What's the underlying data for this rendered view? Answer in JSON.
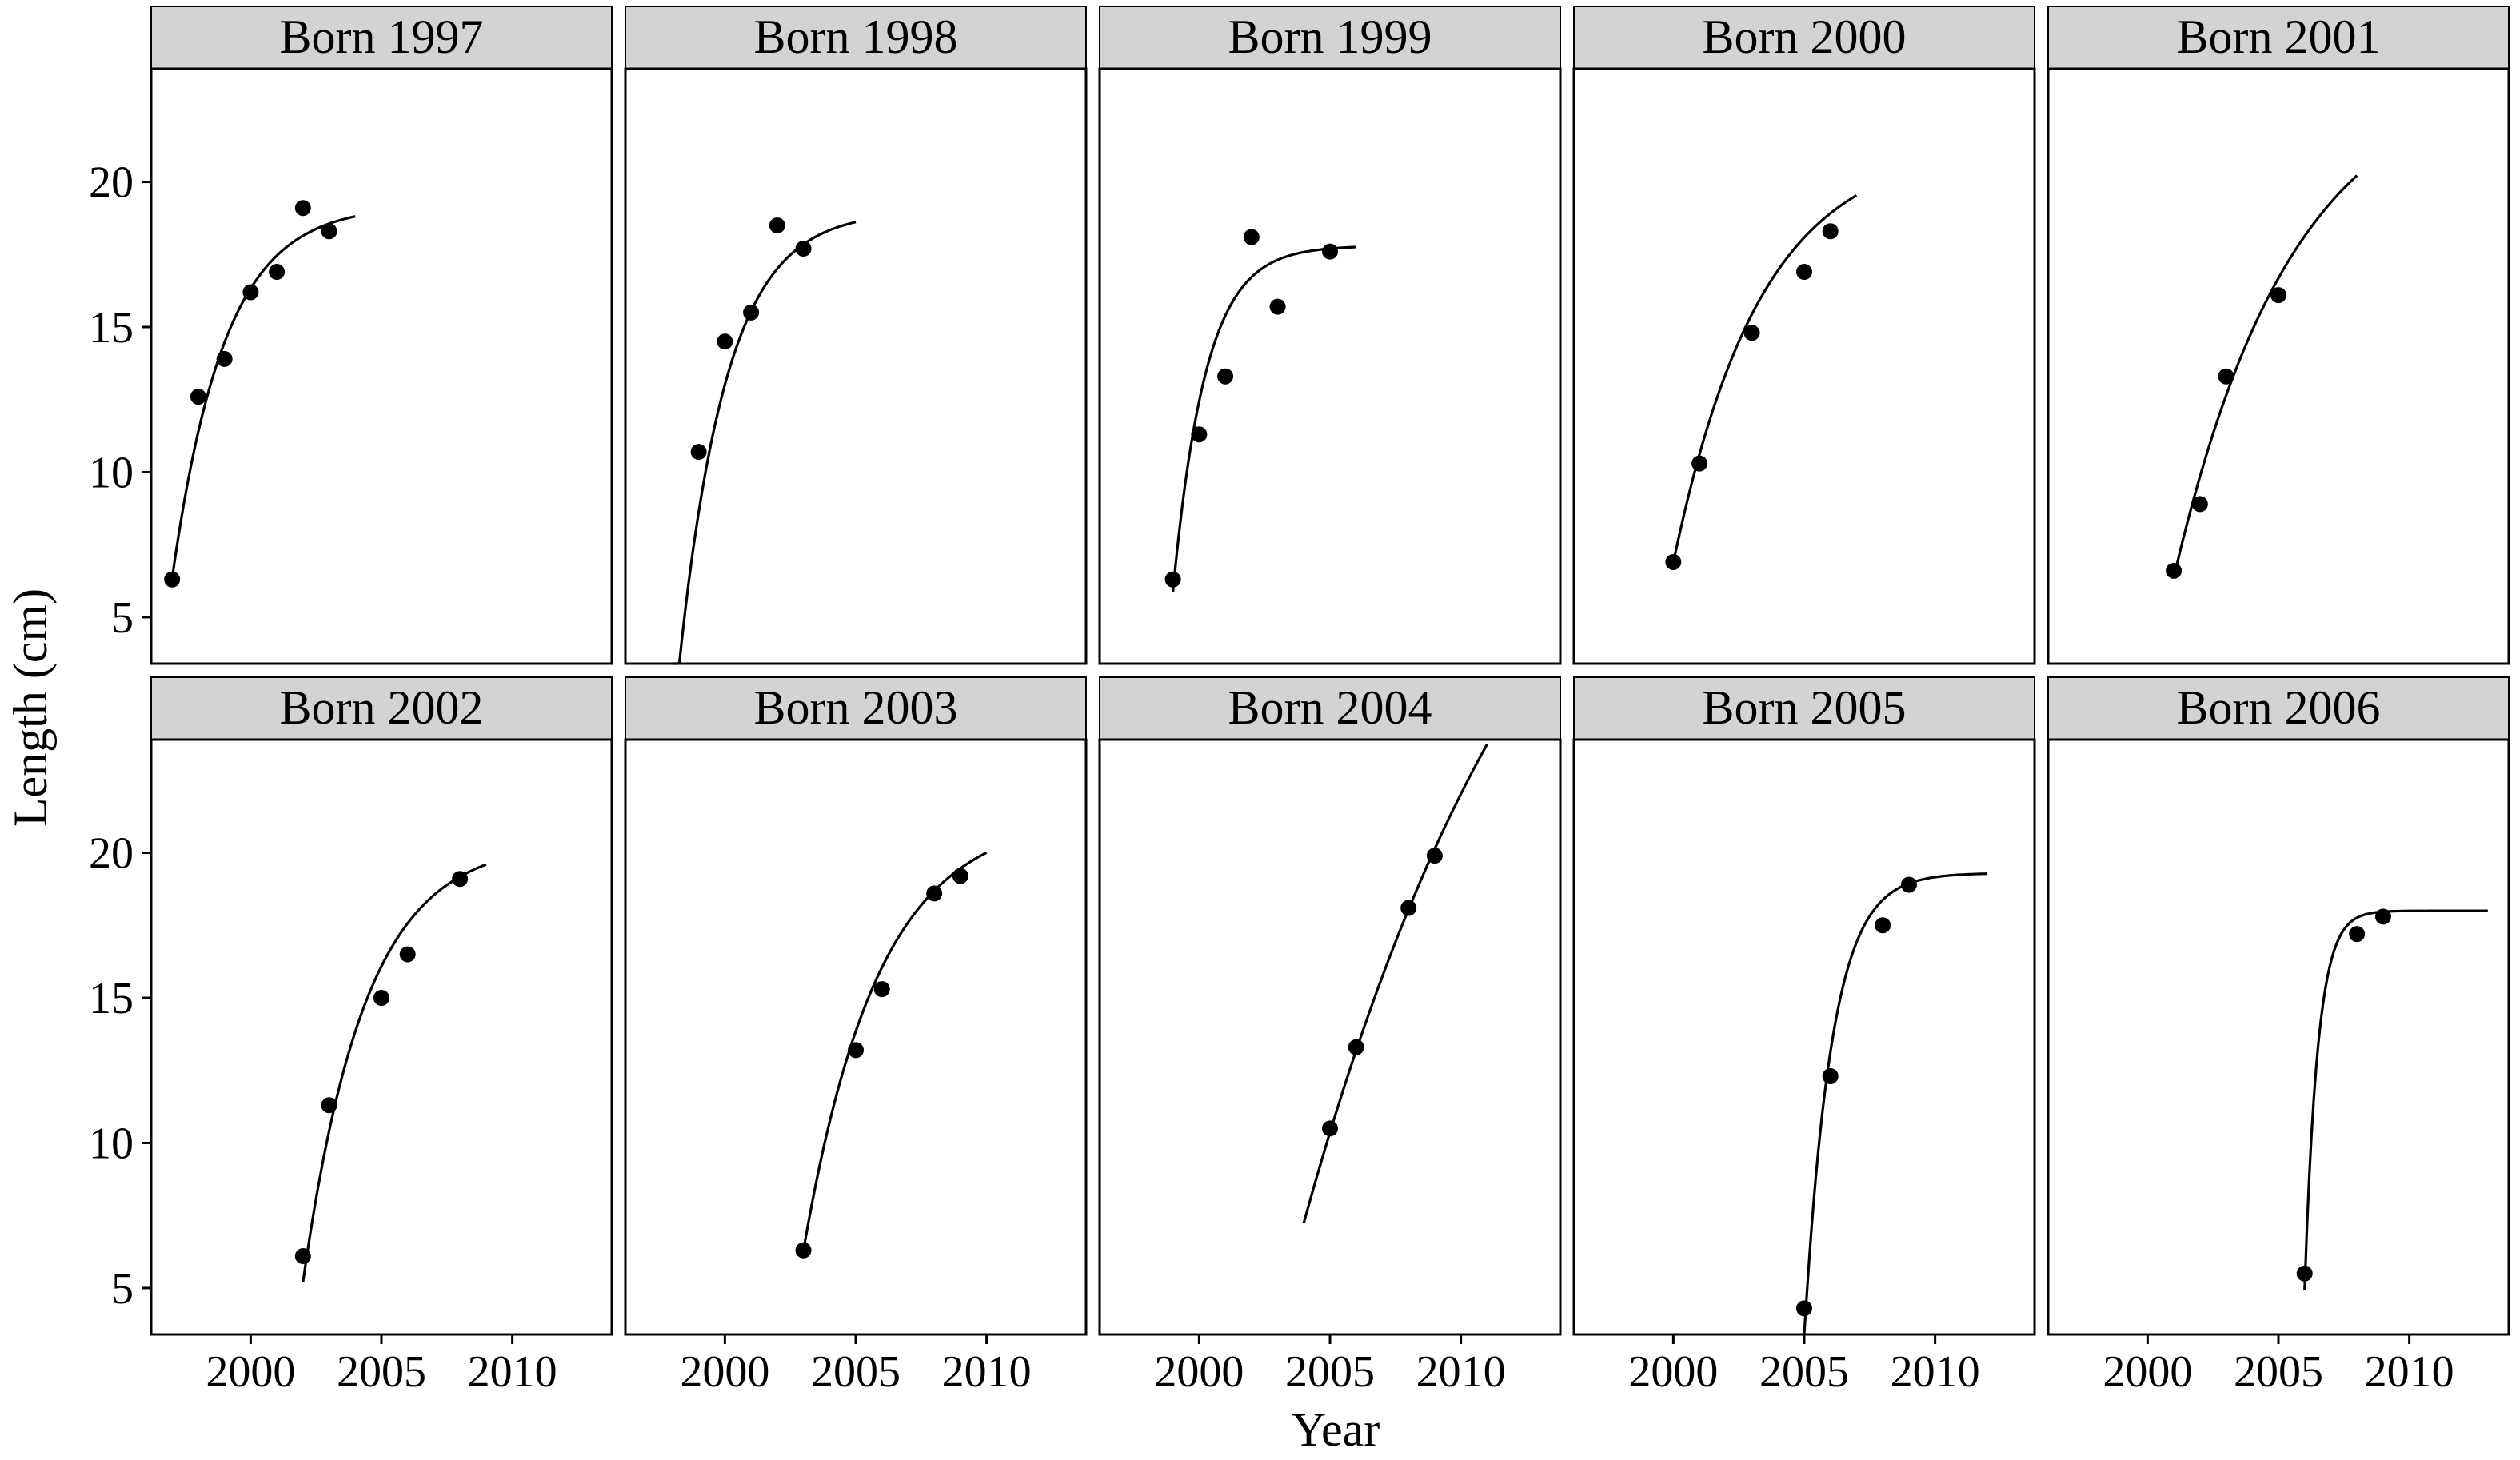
{
  "chart_data": {
    "type": "scatter",
    "layout": "facets 2 rows x 5 columns, shared axes",
    "xlabel": "Year",
    "ylabel": "Length (cm)",
    "xlim": [
      1996.2,
      2013.8
    ],
    "ylim": [
      3.4,
      23.9
    ],
    "xticks": [
      2000,
      2005,
      2010
    ],
    "yticks": [
      5,
      10,
      15,
      20
    ],
    "grid": false,
    "legend": "none",
    "colors": {
      "points": "#000000",
      "line": "#000000",
      "strip": "#d3d3d3",
      "panel": "#ffffff"
    },
    "panels": [
      {
        "title": "Born 1997",
        "points": [
          [
            1997,
            6.3
          ],
          [
            1998,
            12.6
          ],
          [
            1999,
            13.9
          ],
          [
            2000,
            16.2
          ],
          [
            2001,
            16.9
          ],
          [
            2002,
            19.1
          ],
          [
            2003,
            18.3
          ]
        ],
        "curve": {
          "linf": 19.2,
          "k": 0.5,
          "t0": 1996.2,
          "x": [
            1997,
            2004
          ]
        }
      },
      {
        "title": "Born 1998",
        "points": [
          [
            1999,
            10.7
          ],
          [
            2000,
            14.5
          ],
          [
            2001,
            15.5
          ],
          [
            2002,
            18.5
          ],
          [
            2003,
            17.7
          ]
        ],
        "curve": {
          "linf": 19.0,
          "k": 0.55,
          "t0": 1997.9,
          "x": [
            1998,
            2005
          ]
        }
      },
      {
        "title": "Born 1999",
        "points": [
          [
            1999,
            6.3
          ],
          [
            2000,
            11.3
          ],
          [
            2001,
            13.3
          ],
          [
            2002,
            18.1
          ],
          [
            2003,
            15.7
          ],
          [
            2005,
            17.6
          ]
        ],
        "curve": {
          "linf": 17.8,
          "k": 0.8,
          "t0": 1998.5,
          "x": [
            1999,
            2006
          ]
        }
      },
      {
        "title": "Born 2000",
        "points": [
          [
            2000,
            6.9
          ],
          [
            2001,
            10.3
          ],
          [
            2003,
            14.8
          ],
          [
            2005,
            16.9
          ],
          [
            2006,
            18.3
          ]
        ],
        "curve": {
          "linf": 21.3,
          "k": 0.3,
          "t0": 1998.7,
          "x": [
            2000,
            2007
          ]
        }
      },
      {
        "title": "Born 2001",
        "points": [
          [
            2001,
            6.6
          ],
          [
            2002,
            8.9
          ],
          [
            2003,
            13.3
          ],
          [
            2005,
            16.1
          ]
        ],
        "curve": {
          "linf": 24.0,
          "k": 0.22,
          "t0": 1999.6,
          "x": [
            2001,
            2008
          ]
        }
      },
      {
        "title": "Born 2002",
        "points": [
          [
            2002,
            6.1
          ],
          [
            2003,
            11.3
          ],
          [
            2005,
            15.0
          ],
          [
            2006,
            16.5
          ],
          [
            2008,
            19.1
          ]
        ],
        "curve": {
          "linf": 20.4,
          "k": 0.42,
          "t0": 2001.3,
          "x": [
            2002,
            2009
          ]
        }
      },
      {
        "title": "Born 2003",
        "points": [
          [
            2003,
            6.3
          ],
          [
            2005,
            13.2
          ],
          [
            2006,
            15.3
          ],
          [
            2008,
            18.6
          ],
          [
            2009,
            19.2
          ]
        ],
        "curve": {
          "linf": 21.3,
          "k": 0.35,
          "t0": 2002.0,
          "x": [
            2003,
            2010
          ]
        }
      },
      {
        "title": "Born 2004",
        "points": [
          [
            2005,
            10.5
          ],
          [
            2006,
            13.3
          ],
          [
            2008,
            18.1
          ],
          [
            2009,
            19.9
          ]
        ],
        "curve": {
          "linf": 40.0,
          "k": 0.1,
          "t0": 2002.0,
          "x": [
            2004,
            2011
          ]
        }
      },
      {
        "title": "Born 2005",
        "points": [
          [
            2005,
            4.3
          ],
          [
            2006,
            12.3
          ],
          [
            2008,
            17.5
          ],
          [
            2009,
            18.9
          ]
        ],
        "curve": {
          "linf": 19.3,
          "k": 0.95,
          "t0": 2004.8,
          "x": [
            2005,
            2012
          ]
        }
      },
      {
        "title": "Born 2006",
        "points": [
          [
            2006,
            5.5
          ],
          [
            2008,
            17.2
          ],
          [
            2009,
            17.8
          ]
        ],
        "curve": {
          "linf": 18.0,
          "k": 2.0,
          "t0": 2005.84,
          "x": [
            2006,
            2013
          ]
        }
      }
    ]
  }
}
